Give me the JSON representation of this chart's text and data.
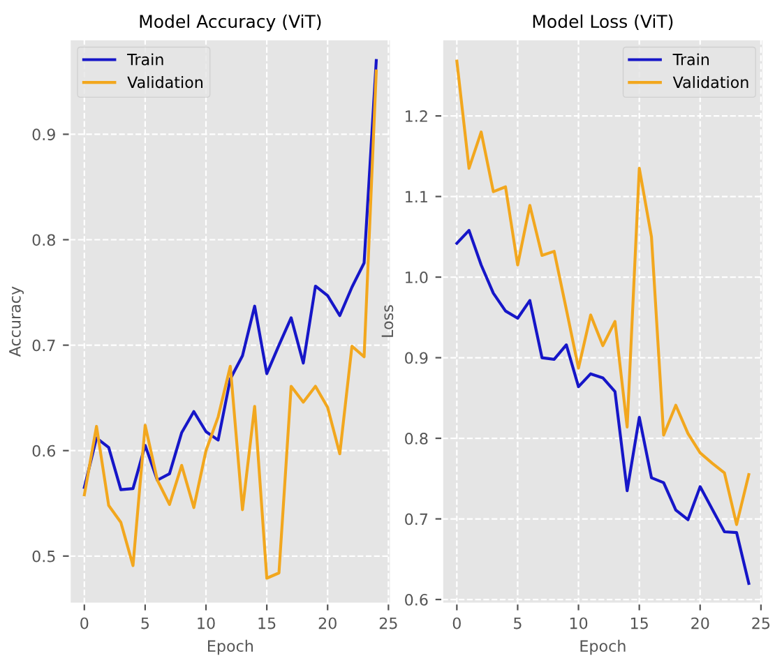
{
  "chart_data": [
    {
      "type": "line",
      "title": "Model Accuracy (ViT)",
      "xlabel": "Epoch",
      "ylabel": "Accuracy",
      "x": [
        0,
        1,
        2,
        3,
        4,
        5,
        6,
        7,
        8,
        9,
        10,
        11,
        12,
        13,
        14,
        15,
        16,
        17,
        18,
        19,
        20,
        21,
        22,
        23,
        24
      ],
      "series": [
        {
          "name": "Train",
          "color": "#1616c8",
          "values": [
            0.565,
            0.612,
            0.603,
            0.563,
            0.564,
            0.605,
            0.572,
            0.578,
            0.617,
            0.637,
            0.618,
            0.61,
            0.668,
            0.69,
            0.737,
            0.673,
            0.7,
            0.726,
            0.683,
            0.756,
            0.747,
            0.728,
            0.755,
            0.778,
            0.97
          ]
        },
        {
          "name": "Validation",
          "color": "#f2a71e",
          "values": [
            0.558,
            0.623,
            0.548,
            0.532,
            0.491,
            0.624,
            0.572,
            0.549,
            0.586,
            0.546,
            0.6,
            0.632,
            0.68,
            0.544,
            0.642,
            0.479,
            0.484,
            0.661,
            0.646,
            0.661,
            0.641,
            0.597,
            0.699,
            0.689,
            0.96
          ]
        }
      ],
      "xlim": [
        -1.2,
        25.2
      ],
      "ylim": [
        0.455,
        0.99
      ],
      "xticks": [
        0,
        5,
        10,
        15,
        20,
        25
      ],
      "yticks": [
        0.5,
        0.6,
        0.7,
        0.8,
        0.9
      ],
      "grid": true,
      "legend": "top left",
      "line_style": "solid",
      "marker": "none"
    },
    {
      "type": "line",
      "title": "Model Loss (ViT)",
      "xlabel": "Epoch",
      "ylabel": "Loss",
      "x": [
        0,
        1,
        2,
        3,
        4,
        5,
        6,
        7,
        8,
        9,
        10,
        11,
        12,
        13,
        14,
        15,
        16,
        17,
        18,
        19,
        20,
        21,
        22,
        23,
        24
      ],
      "series": [
        {
          "name": "Train",
          "color": "#1616c8",
          "values": [
            1.042,
            1.058,
            1.015,
            0.98,
            0.958,
            0.949,
            0.971,
            0.9,
            0.898,
            0.916,
            0.864,
            0.88,
            0.875,
            0.858,
            0.735,
            0.826,
            0.751,
            0.745,
            0.711,
            0.699,
            0.74,
            0.712,
            0.684,
            0.683,
            0.62
          ]
        },
        {
          "name": "Validation",
          "color": "#f2a71e",
          "values": [
            1.268,
            1.135,
            1.18,
            1.106,
            1.112,
            1.015,
            1.089,
            1.027,
            1.032,
            0.96,
            0.887,
            0.953,
            0.915,
            0.945,
            0.814,
            1.135,
            1.05,
            0.804,
            0.841,
            0.806,
            0.782,
            0.769,
            0.757,
            0.693,
            0.755
          ]
        }
      ],
      "xlim": [
        -1.2,
        25.2
      ],
      "ylim": [
        0.595,
        1.295
      ],
      "xticks": [
        0,
        5,
        10,
        15,
        20,
        25
      ],
      "yticks": [
        0.6,
        0.7,
        0.8,
        0.9,
        {
          "value": 1.0,
          "label": "1.0"
        },
        1.1,
        1.2
      ],
      "grid": true,
      "legend": "top right",
      "line_style": "solid",
      "marker": "none"
    }
  ]
}
